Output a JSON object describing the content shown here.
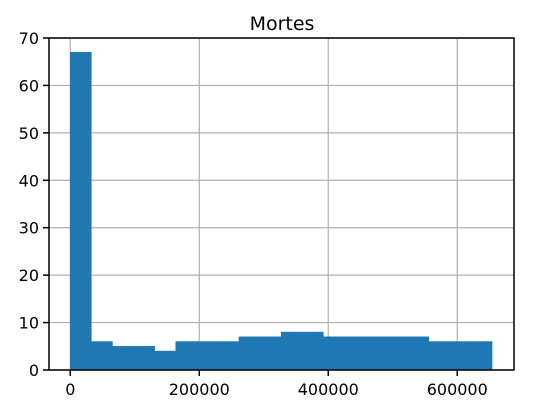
{
  "chart_data": {
    "type": "bar",
    "title": "Mortes",
    "xlabel": "",
    "ylabel": "",
    "xlim": [
      -33000,
      688000
    ],
    "ylim": [
      0,
      70
    ],
    "x_ticks": [
      0,
      200000,
      400000,
      600000
    ],
    "x_tick_labels": [
      "0",
      "200000",
      "400000",
      "600000"
    ],
    "y_ticks": [
      0,
      10,
      20,
      30,
      40,
      50,
      60,
      70
    ],
    "y_tick_labels": [
      "0",
      "10",
      "20",
      "30",
      "40",
      "50",
      "60",
      "70"
    ],
    "grid": true,
    "bar_color": "#1f77b4",
    "bins": [
      {
        "start": 0,
        "end": 32700,
        "count": 67
      },
      {
        "start": 32700,
        "end": 65400,
        "count": 6
      },
      {
        "start": 65400,
        "end": 98100,
        "count": 5
      },
      {
        "start": 98100,
        "end": 130800,
        "count": 5
      },
      {
        "start": 130800,
        "end": 163500,
        "count": 4
      },
      {
        "start": 163500,
        "end": 196200,
        "count": 6
      },
      {
        "start": 196200,
        "end": 228900,
        "count": 6
      },
      {
        "start": 228900,
        "end": 261600,
        "count": 6
      },
      {
        "start": 261600,
        "end": 294300,
        "count": 7
      },
      {
        "start": 294300,
        "end": 327000,
        "count": 7
      },
      {
        "start": 327000,
        "end": 359700,
        "count": 8
      },
      {
        "start": 359700,
        "end": 392400,
        "count": 8
      },
      {
        "start": 392400,
        "end": 425100,
        "count": 7
      },
      {
        "start": 425100,
        "end": 457800,
        "count": 7
      },
      {
        "start": 457800,
        "end": 490500,
        "count": 7
      },
      {
        "start": 490500,
        "end": 523200,
        "count": 7
      },
      {
        "start": 523200,
        "end": 555900,
        "count": 7
      },
      {
        "start": 555900,
        "end": 588600,
        "count": 6
      },
      {
        "start": 588600,
        "end": 621300,
        "count": 6
      },
      {
        "start": 621300,
        "end": 654000,
        "count": 6
      }
    ]
  }
}
